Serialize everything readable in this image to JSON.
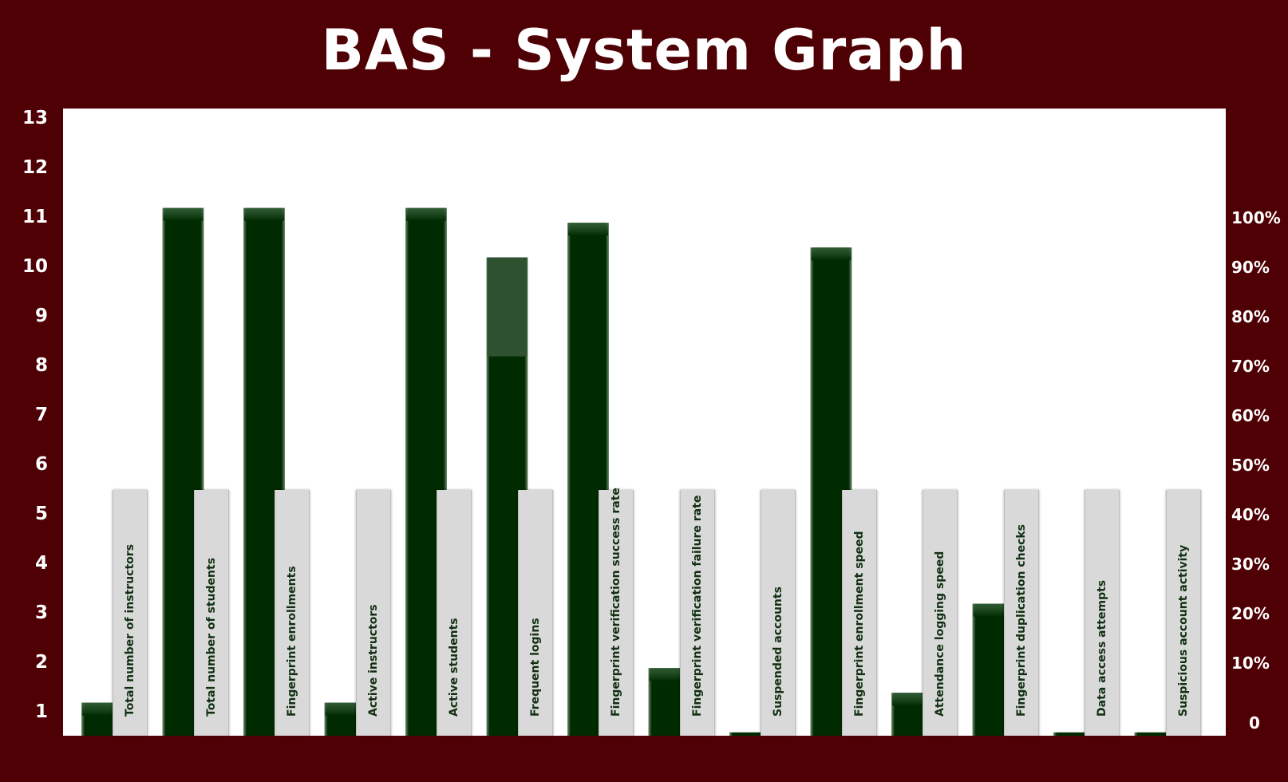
{
  "title": "BAS - System Graph",
  "colors": {
    "background": "#4f0004",
    "plot_background": "#ffffff",
    "bar": "#002b00",
    "bar_highlight": "#2e5230",
    "label_box": "#d9d9d9",
    "axis_text": "#ffffff"
  },
  "chart_data": {
    "type": "bar",
    "title": "BAS - System Graph",
    "xlabel": "",
    "ylabel": "",
    "ylim": [
      0.5,
      13
    ],
    "yticks_left": [
      "1",
      "2",
      "3",
      "4",
      "5",
      "6",
      "7",
      "8",
      "9",
      "10",
      "11",
      "12",
      "13"
    ],
    "yticks_right": [
      "0",
      "10%",
      "20%",
      "30%",
      "40%",
      "50%",
      "60%",
      "70%",
      "80%",
      "90%",
      "100%"
    ],
    "grid": false,
    "legend": "none",
    "categories": [
      "Total number of instructors",
      "Total number of students",
      "Fingerprint enrollments",
      "Active instructors",
      "Active students",
      "Frequent logins",
      "Fingerprint verification success rate",
      "Fingerprint verification failure rate",
      "Suspended accounts",
      "Fingerprint enrollment speed",
      "Attendance logging speed",
      "Fingerprint duplication checks",
      "Data access attempts",
      "Suspicious account activity"
    ],
    "values": [
      1.2,
      11.2,
      11.2,
      1.2,
      11.2,
      10.2,
      10.9,
      1.9,
      0.6,
      10.4,
      1.4,
      3.2,
      0.6,
      0.6
    ],
    "highlight_base": [
      null,
      null,
      null,
      null,
      null,
      8.2,
      null,
      null,
      null,
      null,
      null,
      null,
      null,
      null
    ]
  }
}
